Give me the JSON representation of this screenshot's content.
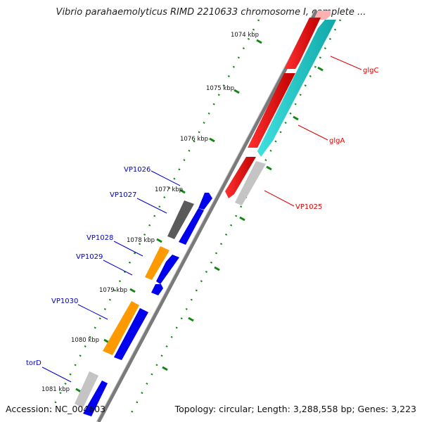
{
  "title": "Vibrio parahaemolyticus RIMD 2210633 chromosome I, complete ...",
  "footer": {
    "accession": "Accession: NC_004603",
    "topology": "Topology: circular; Length: 3,288,558 bp; Genes: 3,223"
  },
  "ticks": [
    "1074 kbp",
    "1075 kbp",
    "1076 kbp",
    "1077 kbp",
    "1078 kbp",
    "1079 kbp",
    "1080 kbp",
    "1081 kbp"
  ],
  "features": [
    {
      "label": "glgC",
      "strand": "forward",
      "color": "#dd0000"
    },
    {
      "label": "glgA",
      "strand": "forward",
      "color": "#dd0000"
    },
    {
      "label": "VP1025",
      "strand": "forward",
      "color": "#dd0000"
    },
    {
      "label": "VP1026",
      "strand": "reverse",
      "color": "#0000cc"
    },
    {
      "label": "VP1027",
      "strand": "reverse",
      "color": "#0000cc"
    },
    {
      "label": "VP1028",
      "strand": "reverse",
      "color": "#0000cc"
    },
    {
      "label": "VP1029",
      "strand": "reverse",
      "color": "#0000cc"
    },
    {
      "label": "VP1030",
      "strand": "reverse",
      "color": "#0000cc"
    },
    {
      "label": "torD",
      "strand": "reverse",
      "color": "#0000cc"
    }
  ],
  "colors": {
    "forward_cds": "#ff0000",
    "forward_cds_alt": "#22cccc",
    "reverse_cds": "#0000ff",
    "cog_orange": "#ff9900",
    "cog_gray": "#666666",
    "cog_lightgray": "#cccccc",
    "backbone": "#888888",
    "tick": "#118811"
  }
}
